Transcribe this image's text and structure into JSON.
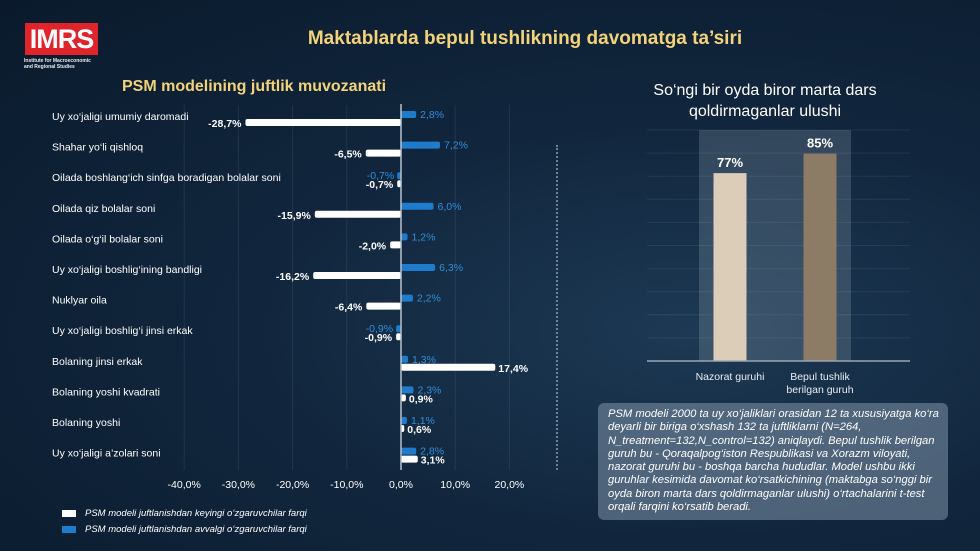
{
  "logo": {
    "text": "IMRS",
    "subtitle": "Institute for Macroeconomic and Regional Studies"
  },
  "title": "Maktablarda bepul tushlikning davomatga ta’siri",
  "chart_data": [
    {
      "type": "bar",
      "orientation": "horizontal",
      "title": "PSM modelining juftlik muvozanati",
      "categories": [
        "Uy xo‘jaligi umumiy daromadi",
        "Shahar yo‘li qishloq",
        "Oilada boshlang‘ich sinfga boradigan bolalar soni",
        "Oilada qiz bolalar soni",
        "Oilada o‘g‘il bolalar soni",
        "Uy xo‘jaligi boshlig‘ining bandligi",
        "Nuklyar oila",
        "Uy xo‘jaligi boshlig‘i jinsi erkak",
        "Bolaning jinsi erkak",
        "Bolaning yoshi kvadrati",
        "Bolaning yoshi",
        "Uy xo‘jaligi a’zolari soni"
      ],
      "series": [
        {
          "name": "PSM modeli juftlanishdan keyingi o‘zgaruvchilar farqi",
          "color": "#ffffff",
          "values": [
            -28.7,
            -6.5,
            -0.7,
            -15.9,
            -2.0,
            -16.2,
            -6.4,
            -0.9,
            17.4,
            0.9,
            0.6,
            3.1
          ],
          "labels": [
            "-28,7%",
            "-6,5%",
            "-0,7%",
            "-15,9%",
            "-2,0%",
            "-16,2%",
            "-6,4%",
            "-0,9%",
            "17,4%",
            "0,9%",
            "0,6%",
            "3,1%"
          ]
        },
        {
          "name": "PSM modeli juftlanishdan avvalgi o‘zgaruvchilar farqi",
          "color": "#1f7ccc",
          "values": [
            2.8,
            7.2,
            -0.7,
            6.0,
            1.2,
            6.3,
            2.2,
            -0.9,
            1.3,
            2.3,
            1.1,
            2.8
          ],
          "labels": [
            "2,8%",
            "7,2%",
            "-0,7%",
            "6,0%",
            "1,2%",
            "6,3%",
            "2,2%",
            "-0,9%",
            "1,3%",
            "2,3%",
            "1,1%",
            "2,8%"
          ]
        }
      ],
      "xlim": [
        -40,
        20
      ],
      "xticks": [
        -40,
        -30,
        -20,
        -10,
        0,
        10,
        20
      ],
      "xtick_labels": [
        "-40,0%",
        "-30,0%",
        "-20,0%",
        "-10,0%",
        "0,0%",
        "10,0%",
        "20,0%"
      ],
      "grid": true,
      "legend": "bottom-left"
    },
    {
      "type": "bar",
      "title": "So‘ngi bir oyda biror marta dars qoldirmaganlar ulushi",
      "categories": [
        "Nazorat guruhi",
        "Bepul tushlik berilgan guruh"
      ],
      "values": [
        77,
        85
      ],
      "labels": [
        "77%",
        "85%"
      ],
      "colors": [
        "#dccdb8",
        "#8c7c66"
      ],
      "ylim": [
        0,
        100
      ],
      "grid": true
    }
  ],
  "note": "PSM modeli 2000 ta uy xo‘jaliklari orasidan 12 ta xususiyatga ko‘ra deyarli bir biriga o‘xshash 132 ta juftliklarni (N=264, N_treatment=132,N_control=132) aniqlaydi. Bepul tushlik berilgan guruh bu - Qoraqalpog‘iston Respublikasi va Xorazm viloyati, nazorat guruhi bu - boshqa barcha hududlar. Model ushbu ikki guruhlar kesimida davomat ko‘rsatkichining (maktabga so‘nggi bir oyda biron marta dars qoldirmaganlar ulushi) o‘rtachalarini t-test orqali farqini ko‘rsatib beradi."
}
